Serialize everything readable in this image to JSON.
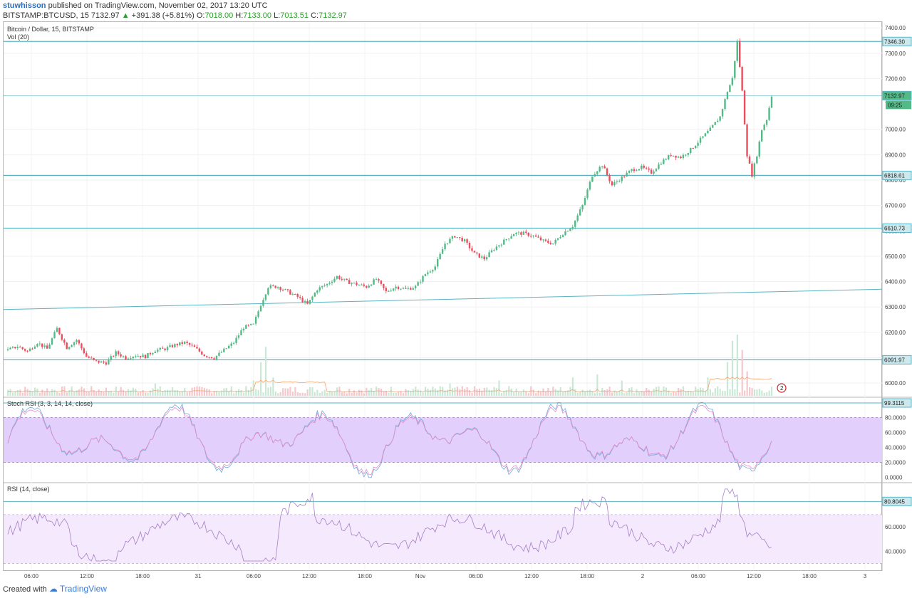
{
  "header": {
    "author": "stuwhisson",
    "published_text": "published on TradingView.com, November 02, 2017 13:20 UTC",
    "symbol": "BITSTAMP:BTCUSD, 15",
    "price": "7132.97",
    "change_arrow": "▲",
    "change": "+391.38 (+5.81%)",
    "o_label": "O:",
    "o_value": "7018.00",
    "h_label": "H:",
    "h_value": "7133.00",
    "l_label": "L:",
    "l_value": "7013.51",
    "c_label": "C:",
    "c_value": "7132.97"
  },
  "footer": {
    "created_with": "Created with",
    "brand": "TradingView"
  },
  "colors": {
    "up": "#53b987",
    "down": "#eb4d5c",
    "hline": "#5ab4c4",
    "stoch_band": "#e3cffb",
    "rsi_band": "#f4e9fd",
    "rsi_line": "#a77ec7",
    "stoch_k": "#6fa8dc",
    "stoch_d": "#e58bc5",
    "vol_ma": "#f5a26b"
  },
  "chart_data": {
    "type": "candlestick",
    "title": "Bitcoin / Dollar, 15, BITSTAMP",
    "subtitle": "Vol (20)",
    "x_ticks": [
      "06:00",
      "12:00",
      "18:00",
      "31",
      "06:00",
      "12:00",
      "18:00",
      "Nov",
      "06:00",
      "12:00",
      "18:00",
      "2",
      "06:00",
      "12:00",
      "18:00",
      "3"
    ],
    "price_axis": {
      "ylim": [
        5950,
        7420
      ],
      "ticks": [
        "7400.00",
        "7300.00",
        "7200.00",
        "7000.00",
        "6900.00",
        "6800.00",
        "6700.00",
        "6600.00",
        "6500.00",
        "6400.00",
        "6300.00",
        "6200.00",
        "6100.00",
        "6000.00"
      ],
      "tick_values": [
        7400,
        7300,
        7200,
        7000,
        6900,
        6800,
        6700,
        6600,
        6500,
        6400,
        6300,
        6200,
        6100,
        6000
      ],
      "tick_7100_label": "7"
    },
    "horizontal_levels": [
      {
        "value": 7346.3,
        "label": "7346.30"
      },
      {
        "value": 7132.97,
        "label": "7132.97"
      },
      {
        "value": 6818.61,
        "label": "6818.61"
      },
      {
        "value": 6610.73,
        "label": "6610.73"
      },
      {
        "value": 6091.97,
        "label": "6091.97"
      }
    ],
    "countdown_label": "09:25",
    "trendline": {
      "from": 6290,
      "to": 6370
    },
    "price_path": [
      [
        0,
        6130
      ],
      [
        4,
        6145
      ],
      [
        8,
        6125
      ],
      [
        12,
        6160
      ],
      [
        16,
        6135
      ],
      [
        20,
        6215
      ],
      [
        24,
        6140
      ],
      [
        28,
        6170
      ],
      [
        32,
        6105
      ],
      [
        36,
        6085
      ],
      [
        40,
        6080
      ],
      [
        44,
        6120
      ],
      [
        48,
        6100
      ],
      [
        52,
        6110
      ],
      [
        56,
        6105
      ],
      [
        60,
        6130
      ],
      [
        64,
        6135
      ],
      [
        68,
        6150
      ],
      [
        72,
        6160
      ],
      [
        76,
        6140
      ],
      [
        80,
        6110
      ],
      [
        84,
        6100
      ],
      [
        88,
        6130
      ],
      [
        92,
        6160
      ],
      [
        96,
        6220
      ],
      [
        100,
        6230
      ],
      [
        103,
        6310
      ],
      [
        106,
        6380
      ],
      [
        110,
        6380
      ],
      [
        114,
        6360
      ],
      [
        118,
        6340
      ],
      [
        122,
        6310
      ],
      [
        126,
        6370
      ],
      [
        130,
        6390
      ],
      [
        134,
        6420
      ],
      [
        138,
        6400
      ],
      [
        142,
        6390
      ],
      [
        146,
        6380
      ],
      [
        150,
        6410
      ],
      [
        154,
        6360
      ],
      [
        158,
        6380
      ],
      [
        162,
        6370
      ],
      [
        166,
        6380
      ],
      [
        170,
        6430
      ],
      [
        174,
        6460
      ],
      [
        178,
        6550
      ],
      [
        182,
        6580
      ],
      [
        186,
        6560
      ],
      [
        190,
        6510
      ],
      [
        194,
        6490
      ],
      [
        198,
        6530
      ],
      [
        202,
        6560
      ],
      [
        206,
        6590
      ],
      [
        210,
        6590
      ],
      [
        214,
        6580
      ],
      [
        218,
        6560
      ],
      [
        222,
        6550
      ],
      [
        226,
        6590
      ],
      [
        230,
        6620
      ],
      [
        234,
        6700
      ],
      [
        238,
        6820
      ],
      [
        242,
        6860
      ],
      [
        246,
        6780
      ],
      [
        250,
        6810
      ],
      [
        254,
        6840
      ],
      [
        258,
        6850
      ],
      [
        262,
        6830
      ],
      [
        266,
        6870
      ],
      [
        270,
        6900
      ],
      [
        274,
        6890
      ],
      [
        278,
        6920
      ],
      [
        282,
        6960
      ],
      [
        286,
        7000
      ],
      [
        290,
        7050
      ],
      [
        293,
        7150
      ],
      [
        295,
        7200
      ],
      [
        297,
        7346
      ],
      [
        299,
        7150
      ],
      [
        301,
        6900
      ],
      [
        303,
        6820
      ],
      [
        305,
        6900
      ],
      [
        307,
        7000
      ],
      [
        309,
        7040
      ],
      [
        311,
        7132.97
      ]
    ],
    "n_bars": 312,
    "volume": {
      "label": "Vol (20)",
      "bars": [
        {
          "i": 30,
          "v": 0.15
        },
        {
          "i": 60,
          "v": 0.2
        },
        {
          "i": 100,
          "v": 0.25
        },
        {
          "i": 103,
          "v": 0.55
        },
        {
          "i": 105,
          "v": 0.8
        },
        {
          "i": 108,
          "v": 0.3
        },
        {
          "i": 135,
          "v": 0.15
        },
        {
          "i": 180,
          "v": 0.2
        },
        {
          "i": 200,
          "v": 0.25
        },
        {
          "i": 230,
          "v": 0.3
        },
        {
          "i": 240,
          "v": 0.35
        },
        {
          "i": 250,
          "v": 0.25
        },
        {
          "i": 285,
          "v": 0.3
        },
        {
          "i": 293,
          "v": 0.55
        },
        {
          "i": 295,
          "v": 0.9
        },
        {
          "i": 297,
          "v": 1.0
        },
        {
          "i": 299,
          "v": 0.75
        },
        {
          "i": 301,
          "v": 0.4
        }
      ]
    },
    "stoch_rsi": {
      "label": "Stoch RSI (3, 3, 14, 14, close)",
      "ylim": [
        -5,
        105
      ],
      "ticks": [
        "80.0000",
        "60.0000",
        "40.0000",
        "20.0000",
        "0.0000"
      ],
      "tick_values": [
        80,
        60,
        40,
        20,
        0
      ],
      "band": [
        20,
        80
      ],
      "last_label": "99.3115"
    },
    "rsi": {
      "label": "RSI (14, close)",
      "ylim": [
        25,
        95
      ],
      "ticks": [
        "60.0000",
        "40.0000"
      ],
      "tick_values": [
        60,
        40
      ],
      "band": [
        30,
        70
      ],
      "level_label": "80.8045",
      "level_value": 80.8
    },
    "flag_label": "2"
  }
}
